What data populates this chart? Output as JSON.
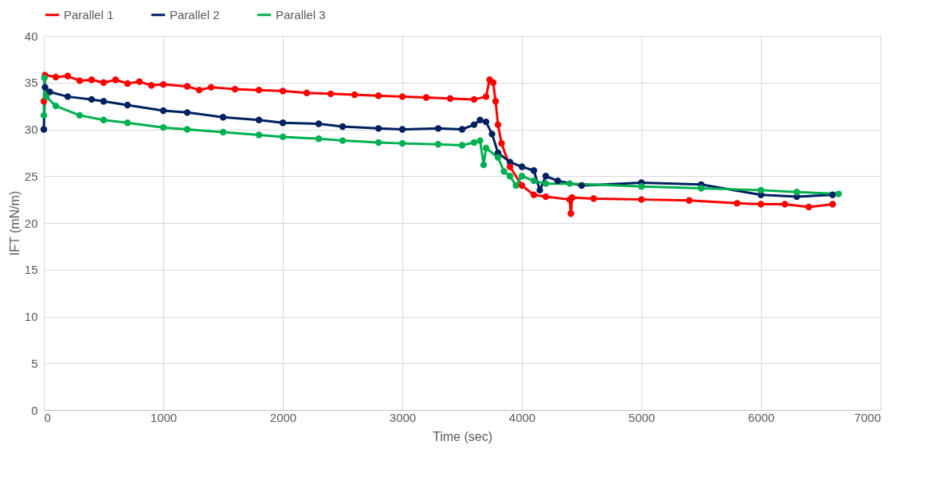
{
  "chart_data": {
    "type": "line",
    "xlabel": "Time (sec)",
    "ylabel": "IFT (mN/m)",
    "xlim": [
      0,
      7000
    ],
    "ylim": [
      0,
      40
    ],
    "xticks": [
      0,
      1000,
      2000,
      3000,
      4000,
      5000,
      6000,
      7000
    ],
    "yticks": [
      0,
      5,
      10,
      15,
      20,
      25,
      30,
      35,
      40
    ],
    "grid": true,
    "legend": "top",
    "marker": "circle",
    "line_style": "solid",
    "series": [
      {
        "name": "Parallel 1",
        "color": "#ff0000",
        "x": [
          0,
          10,
          100,
          200,
          300,
          400,
          500,
          600,
          700,
          800,
          900,
          1000,
          1200,
          1300,
          1400,
          1600,
          1800,
          2000,
          2200,
          2400,
          2600,
          2800,
          3000,
          3200,
          3400,
          3600,
          3700,
          3730,
          3760,
          3780,
          3800,
          3830,
          3900,
          4000,
          4100,
          4200,
          4400,
          4410,
          4420,
          4600,
          5000,
          5400,
          5800,
          6000,
          6200,
          6400,
          6600
        ],
        "values": [
          33,
          35.8,
          35.6,
          35.7,
          35.2,
          35.3,
          35,
          35.3,
          34.9,
          35.1,
          34.7,
          34.8,
          34.6,
          34.2,
          34.5,
          34.3,
          34.2,
          34.1,
          33.9,
          33.8,
          33.7,
          33.6,
          33.5,
          33.4,
          33.3,
          33.2,
          33.5,
          35.3,
          35,
          33,
          30.5,
          28.5,
          26,
          24,
          23,
          22.8,
          22.5,
          21,
          22.7,
          22.6,
          22.5,
          22.4,
          22.1,
          22,
          22,
          21.7,
          22
        ]
      },
      {
        "name": "Parallel 2",
        "color": "#002060",
        "x": [
          0,
          10,
          50,
          200,
          400,
          500,
          700,
          1000,
          1200,
          1500,
          1800,
          2000,
          2300,
          2500,
          2800,
          3000,
          3300,
          3500,
          3600,
          3650,
          3700,
          3750,
          3800,
          3900,
          4000,
          4100,
          4150,
          4200,
          4300,
          4500,
          5000,
          5500,
          6000,
          6300,
          6600
        ],
        "values": [
          30,
          34.5,
          34,
          33.5,
          33.2,
          33,
          32.6,
          32,
          31.8,
          31.3,
          31,
          30.7,
          30.6,
          30.3,
          30.1,
          30,
          30.1,
          30,
          30.5,
          31,
          30.8,
          29.5,
          27.5,
          26.5,
          26,
          25.6,
          23.5,
          25,
          24.5,
          24,
          24.3,
          24.1,
          23,
          22.8,
          23
        ]
      },
      {
        "name": "Parallel 3",
        "color": "#00b050",
        "x": [
          0,
          5,
          20,
          100,
          300,
          500,
          700,
          1000,
          1200,
          1500,
          1800,
          2000,
          2300,
          2500,
          2800,
          3000,
          3300,
          3500,
          3600,
          3650,
          3680,
          3700,
          3800,
          3850,
          3900,
          3950,
          4000,
          4100,
          4200,
          4400,
          5000,
          5500,
          6000,
          6300,
          6650
        ],
        "values": [
          31.5,
          35.5,
          33.5,
          32.5,
          31.5,
          31,
          30.7,
          30.2,
          30,
          29.7,
          29.4,
          29.2,
          29,
          28.8,
          28.6,
          28.5,
          28.4,
          28.3,
          28.6,
          28.8,
          26.2,
          28,
          27,
          25.5,
          25,
          24,
          25,
          24.5,
          24.2,
          24.2,
          23.9,
          23.7,
          23.5,
          23.3,
          23.1
        ]
      }
    ]
  }
}
